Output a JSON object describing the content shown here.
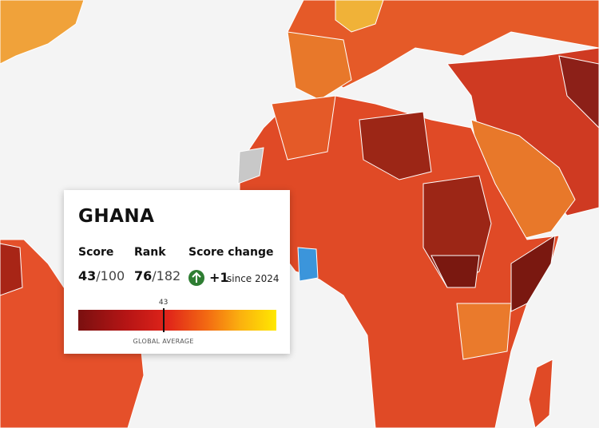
{
  "popup": {
    "country": "GHANA",
    "score_label": "Score",
    "score": 43,
    "score_max": "/100",
    "rank_label": "Rank",
    "rank": 76,
    "rank_of": "/182",
    "change_label": "Score change",
    "change": "+1",
    "change_since": "since 2024",
    "bar_range": [
      0,
      100
    ],
    "marker_label": "GLOBAL AVERAGE"
  }
}
